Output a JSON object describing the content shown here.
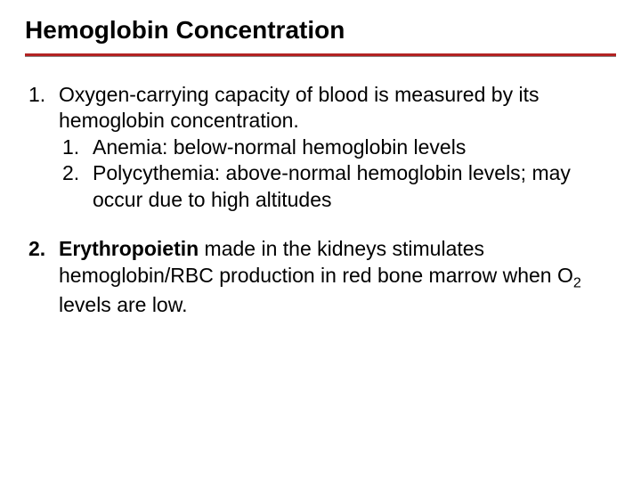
{
  "title": "Hemoglobin Concentration",
  "colors": {
    "rule_red": "#b22222",
    "rule_gray": "#888888",
    "text": "#000000",
    "background": "#ffffff"
  },
  "typography": {
    "title_fontsize": 28,
    "title_weight": "bold",
    "body_fontsize": 23,
    "font_family": "Arial"
  },
  "items": [
    {
      "num": "1.",
      "text": "Oxygen-carrying capacity of blood is measured by its hemoglobin concentration.",
      "bold_prefix": "",
      "sub": [
        {
          "num": "1.",
          "text": "Anemia: below-normal hemoglobin levels"
        },
        {
          "num": "2.",
          "text": "Polycythemia: above-normal hemoglobin levels; may occur due to high altitudes"
        }
      ]
    },
    {
      "num": "2.",
      "bold_prefix": "Erythropoietin",
      "text_after_bold_pre_sub": " made in the kidneys stimulates hemoglobin/RBC production in red bone marrow when O",
      "subscript": "2",
      "text_after_sub": " levels are low.",
      "sub": []
    }
  ]
}
